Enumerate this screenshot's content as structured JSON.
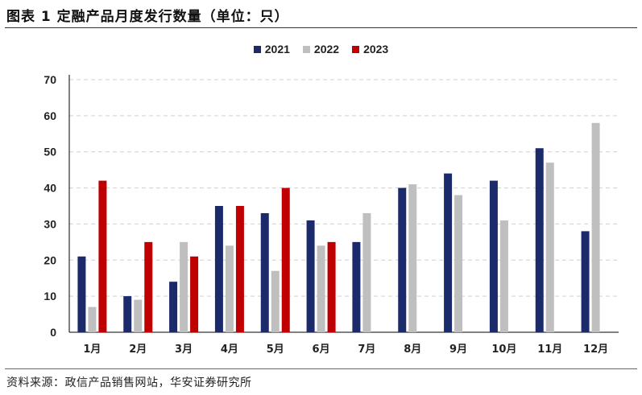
{
  "header": {
    "title": "图表 1 定融产品月度发行数量（单位：只）"
  },
  "footer": {
    "source": "资料来源：政信产品销售网站，华安证券研究所"
  },
  "colors": {
    "2021": "#1b2a6b",
    "2022": "#bfbfbf",
    "2023": "#c00000"
  },
  "chart_data": {
    "type": "bar",
    "title": "",
    "xlabel": "",
    "ylabel": "",
    "ylim": [
      0,
      70
    ],
    "yticks": [
      0,
      10,
      20,
      30,
      40,
      50,
      60,
      70
    ],
    "grid": true,
    "legend_position": "top-center",
    "categories": [
      "1月",
      "2月",
      "3月",
      "4月",
      "5月",
      "6月",
      "7月",
      "8月",
      "9月",
      "10月",
      "11月",
      "12月"
    ],
    "series": [
      {
        "name": "2021",
        "values": [
          21,
          10,
          14,
          35,
          33,
          31,
          25,
          40,
          44,
          42,
          51,
          28
        ]
      },
      {
        "name": "2022",
        "values": [
          7,
          9,
          25,
          24,
          17,
          24,
          33,
          41,
          38,
          31,
          47,
          58
        ]
      },
      {
        "name": "2023",
        "values": [
          42,
          25,
          21,
          35,
          40,
          25,
          null,
          null,
          null,
          null,
          null,
          null
        ]
      }
    ]
  }
}
